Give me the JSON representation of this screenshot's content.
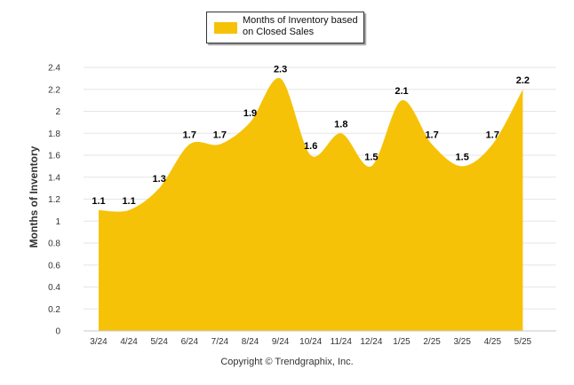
{
  "legend": {
    "label": "Months of Inventory based on Closed Sales"
  },
  "copyright": "Copyright © Trendgraphix, Inc.",
  "colors": {
    "area_fill": "#F6C208",
    "grid": "#e6e6e6",
    "axis_text": "#333333",
    "label_text": "#000000"
  },
  "chart_data": {
    "type": "area",
    "title": "",
    "xlabel": "",
    "ylabel": "Months of Inventory",
    "categories": [
      "3/24",
      "4/24",
      "5/24",
      "6/24",
      "7/24",
      "8/24",
      "9/24",
      "10/24",
      "11/24",
      "12/24",
      "1/25",
      "2/25",
      "3/25",
      "4/25",
      "5/25"
    ],
    "series": [
      {
        "name": "Months of Inventory based on Closed Sales",
        "values": [
          1.1,
          1.1,
          1.3,
          1.7,
          1.7,
          1.9,
          2.3,
          1.6,
          1.8,
          1.5,
          2.1,
          1.7,
          1.5,
          1.7,
          2.2
        ]
      }
    ],
    "ylim": [
      0,
      2.4
    ],
    "yticks": [
      0,
      0.2,
      0.4,
      0.6,
      0.8,
      1,
      1.2,
      1.4,
      1.6,
      1.8,
      2,
      2.2,
      2.4
    ],
    "grid": true,
    "legend_position": "top-center",
    "data_labels": true
  }
}
